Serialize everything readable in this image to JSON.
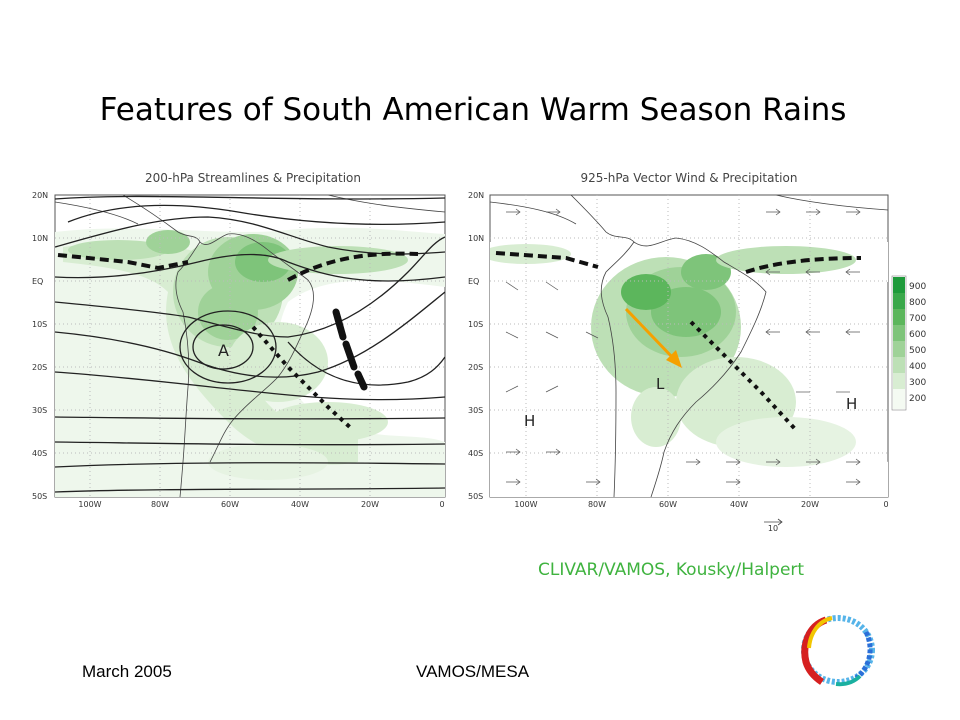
{
  "slide": {
    "title": "Features of South American Warm Season Rains",
    "credit": "CLIVAR/VAMOS, Kousky/Halpert",
    "credit_color": "#3fb33f",
    "footer_left": "March 2005",
    "footer_center": "VAMOS/MESA"
  },
  "left_map": {
    "title": "200-hPa Streamlines & Precipitation",
    "lat_labels": [
      "20N",
      "10N",
      "EQ",
      "10S",
      "20S",
      "30S",
      "40S",
      "50S"
    ],
    "lon_labels": [
      "100W",
      "80W",
      "60W",
      "40W",
      "20W",
      "0"
    ],
    "annotations": [
      "A"
    ]
  },
  "right_map": {
    "title": "925-hPa Vector Wind & Precipitation",
    "lat_labels": [
      "20N",
      "10N",
      "EQ",
      "10S",
      "20S",
      "30S",
      "40S",
      "50S"
    ],
    "lon_labels": [
      "100W",
      "80W",
      "60W",
      "40W",
      "20W",
      "0"
    ],
    "annotations": [
      "L",
      "H",
      "H"
    ],
    "vector_scale_label": "10",
    "legend_levels": [
      "900",
      "800",
      "700",
      "600",
      "500",
      "400",
      "300",
      "200"
    ],
    "legend_colors": [
      "#1e9a3a",
      "#3aa84a",
      "#5cb65c",
      "#7ec47a",
      "#9fd298",
      "#bde0b6",
      "#d8edd2",
      "#f4faf2"
    ]
  }
}
